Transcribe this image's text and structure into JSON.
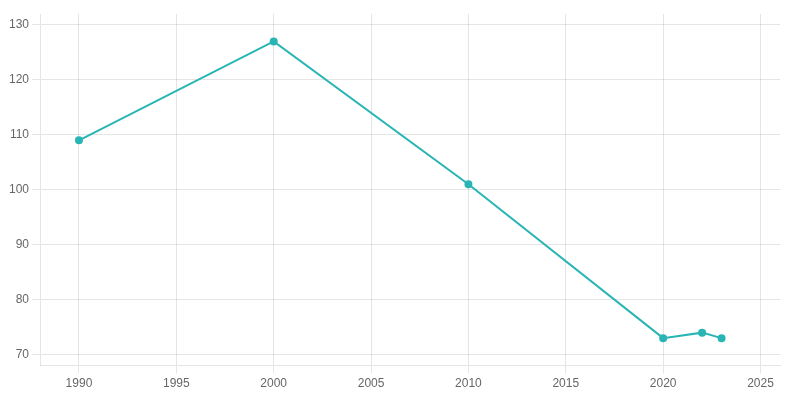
{
  "chart_data": {
    "type": "line",
    "x": [
      1990,
      2000,
      2010,
      2020,
      2022,
      2023
    ],
    "values": [
      109,
      127,
      101,
      73,
      74,
      73
    ],
    "color": "#2ab5b5",
    "marker": "circle",
    "xlim": [
      1988,
      2026
    ],
    "xticks": [
      1990,
      1995,
      2000,
      2005,
      2010,
      2015,
      2020,
      2025
    ],
    "ylim": [
      68,
      132
    ],
    "yticks": [
      70,
      80,
      90,
      100,
      110,
      120,
      130
    ],
    "grid": true
  }
}
